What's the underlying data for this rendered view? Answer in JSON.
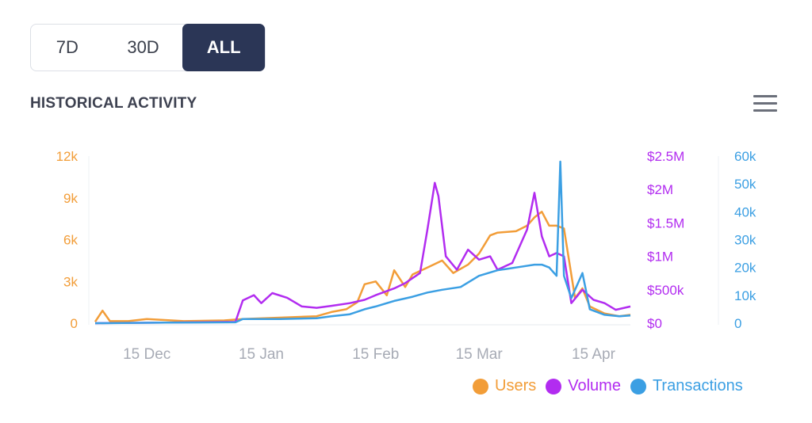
{
  "range_selector": {
    "options": [
      "7D",
      "30D",
      "ALL"
    ],
    "selected": "ALL"
  },
  "header": {
    "title": "HISTORICAL ACTIVITY",
    "menu_icon": "hamburger-menu-icon"
  },
  "colors": {
    "users": "#f29d38",
    "volume": "#b22cf0",
    "transactions": "#3b9fe3",
    "accent_button": "#2b3656"
  },
  "chart_data": {
    "type": "line",
    "title": "HISTORICAL ACTIVITY",
    "x_ticks": [
      "15 Dec",
      "15 Jan",
      "15 Feb",
      "15 Mar",
      "15 Apr"
    ],
    "x_range": [
      "2021-12-01",
      "2022-04-25"
    ],
    "y_axes": [
      {
        "series": "Users",
        "side": "left",
        "ticks": [
          "0",
          "3k",
          "6k",
          "9k",
          "12k"
        ],
        "range": [
          0,
          12000
        ]
      },
      {
        "series": "Volume",
        "side": "right",
        "ticks": [
          "$0",
          "$500k",
          "$1M",
          "$1.5M",
          "$2M",
          "$2.5M"
        ],
        "range": [
          0,
          2500000
        ]
      },
      {
        "series": "Transactions",
        "side": "right",
        "ticks": [
          "0",
          "10k",
          "20k",
          "30k",
          "40k",
          "50k",
          "60k"
        ],
        "range": [
          0,
          60000
        ]
      }
    ],
    "grid": false,
    "legend": "bottom-right",
    "series": [
      {
        "name": "Users",
        "axis": 0,
        "points": [
          [
            "2021-12-01",
            100
          ],
          [
            "2021-12-03",
            900
          ],
          [
            "2021-12-05",
            150
          ],
          [
            "2021-12-10",
            150
          ],
          [
            "2021-12-15",
            300
          ],
          [
            "2021-12-25",
            150
          ],
          [
            "2022-01-05",
            200
          ],
          [
            "2022-01-10",
            300
          ],
          [
            "2022-01-20",
            400
          ],
          [
            "2022-01-30",
            500
          ],
          [
            "2022-02-03",
            800
          ],
          [
            "2022-02-07",
            1000
          ],
          [
            "2022-02-10",
            1500
          ],
          [
            "2022-02-12",
            2800
          ],
          [
            "2022-02-15",
            3000
          ],
          [
            "2022-02-18",
            2000
          ],
          [
            "2022-02-20",
            3800
          ],
          [
            "2022-02-23",
            2600
          ],
          [
            "2022-02-25",
            3500
          ],
          [
            "2022-03-01",
            4000
          ],
          [
            "2022-03-05",
            4500
          ],
          [
            "2022-03-08",
            3600
          ],
          [
            "2022-03-12",
            4200
          ],
          [
            "2022-03-15",
            5000
          ],
          [
            "2022-03-18",
            6300
          ],
          [
            "2022-03-20",
            6500
          ],
          [
            "2022-03-25",
            6600
          ],
          [
            "2022-03-28",
            7000
          ],
          [
            "2022-03-30",
            7600
          ],
          [
            "2022-04-01",
            8000
          ],
          [
            "2022-04-03",
            7000
          ],
          [
            "2022-04-05",
            7000
          ],
          [
            "2022-04-07",
            6800
          ],
          [
            "2022-04-10",
            1800
          ],
          [
            "2022-04-12",
            2500
          ],
          [
            "2022-04-14",
            1200
          ],
          [
            "2022-04-18",
            700
          ],
          [
            "2022-04-22",
            500
          ],
          [
            "2022-04-25",
            600
          ]
        ]
      },
      {
        "name": "Volume",
        "axis": 1,
        "points": [
          [
            "2021-12-01",
            0
          ],
          [
            "2021-12-20",
            10000
          ],
          [
            "2022-01-08",
            20000
          ],
          [
            "2022-01-10",
            340000
          ],
          [
            "2022-01-13",
            420000
          ],
          [
            "2022-01-15",
            300000
          ],
          [
            "2022-01-18",
            450000
          ],
          [
            "2022-01-22",
            380000
          ],
          [
            "2022-01-26",
            250000
          ],
          [
            "2022-01-30",
            230000
          ],
          [
            "2022-02-03",
            260000
          ],
          [
            "2022-02-08",
            300000
          ],
          [
            "2022-02-12",
            350000
          ],
          [
            "2022-02-15",
            420000
          ],
          [
            "2022-02-20",
            520000
          ],
          [
            "2022-02-23",
            600000
          ],
          [
            "2022-02-27",
            750000
          ],
          [
            "2022-03-01",
            1400000
          ],
          [
            "2022-03-03",
            2100000
          ],
          [
            "2022-03-04",
            1900000
          ],
          [
            "2022-03-06",
            1000000
          ],
          [
            "2022-03-09",
            800000
          ],
          [
            "2022-03-12",
            1100000
          ],
          [
            "2022-03-15",
            950000
          ],
          [
            "2022-03-18",
            1000000
          ],
          [
            "2022-03-20",
            800000
          ],
          [
            "2022-03-24",
            900000
          ],
          [
            "2022-03-28",
            1400000
          ],
          [
            "2022-03-30",
            1950000
          ],
          [
            "2022-04-01",
            1300000
          ],
          [
            "2022-04-03",
            1000000
          ],
          [
            "2022-04-05",
            1050000
          ],
          [
            "2022-04-07",
            1000000
          ],
          [
            "2022-04-09",
            300000
          ],
          [
            "2022-04-12",
            500000
          ],
          [
            "2022-04-15",
            350000
          ],
          [
            "2022-04-18",
            300000
          ],
          [
            "2022-04-21",
            200000
          ],
          [
            "2022-04-25",
            250000
          ]
        ]
      },
      {
        "name": "Transactions",
        "axis": 2,
        "points": [
          [
            "2021-12-01",
            0
          ],
          [
            "2021-12-20",
            200
          ],
          [
            "2022-01-08",
            300
          ],
          [
            "2022-01-10",
            1500
          ],
          [
            "2022-01-20",
            1500
          ],
          [
            "2022-01-30",
            1800
          ],
          [
            "2022-02-03",
            2500
          ],
          [
            "2022-02-08",
            3200
          ],
          [
            "2022-02-12",
            5000
          ],
          [
            "2022-02-15",
            6000
          ],
          [
            "2022-02-20",
            8000
          ],
          [
            "2022-02-25",
            9500
          ],
          [
            "2022-03-01",
            11000
          ],
          [
            "2022-03-05",
            12000
          ],
          [
            "2022-03-10",
            13000
          ],
          [
            "2022-03-15",
            17000
          ],
          [
            "2022-03-20",
            19000
          ],
          [
            "2022-03-25",
            20000
          ],
          [
            "2022-03-30",
            21000
          ],
          [
            "2022-04-01",
            21000
          ],
          [
            "2022-04-03",
            20000
          ],
          [
            "2022-04-05",
            17000
          ],
          [
            "2022-04-06",
            58000
          ],
          [
            "2022-04-07",
            17000
          ],
          [
            "2022-04-09",
            9000
          ],
          [
            "2022-04-12",
            18000
          ],
          [
            "2022-04-14",
            5000
          ],
          [
            "2022-04-18",
            3000
          ],
          [
            "2022-04-22",
            2500
          ],
          [
            "2022-04-25",
            2800
          ]
        ]
      }
    ]
  },
  "legend": {
    "items": [
      "Users",
      "Volume",
      "Transactions"
    ]
  }
}
